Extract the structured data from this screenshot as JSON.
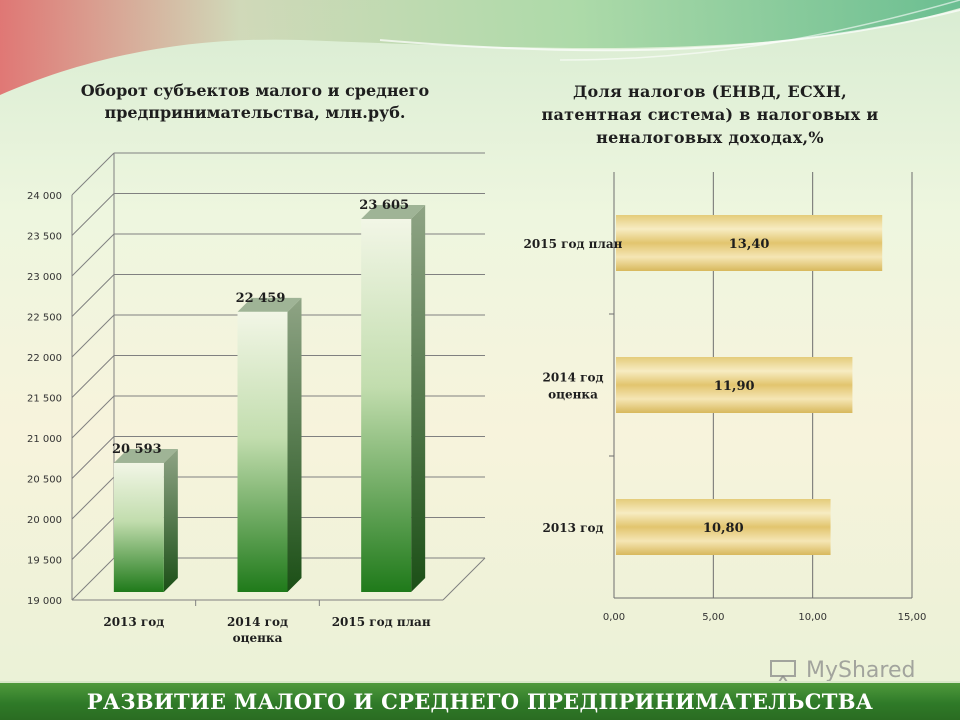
{
  "slide": {
    "footer_text": "РАЗВИТИЕ МАЛОГО И СРЕДНЕГО ПРЕДПРИНИМАТЕЛЬСТВА",
    "watermark_text": "MyShared"
  },
  "colors": {
    "bar_green_dark": "#1f7a1a",
    "bar_green_light": "#f2f6e6",
    "bar_gold": "#e7cf7f",
    "footer_green": "#3a8530"
  },
  "chart_data": [
    {
      "type": "bar",
      "title_lines": [
        "Оборот субъектов малого и среднего",
        "предпринимательства, млн.руб."
      ],
      "categories": [
        [
          "2013 год"
        ],
        [
          "2014 год",
          "оценка"
        ],
        [
          "2015 год план"
        ]
      ],
      "values": [
        20593,
        22459,
        23605
      ],
      "value_labels": [
        "20 593",
        "22 459",
        "23 605"
      ],
      "yticks": [
        "19 000",
        "19 500",
        "20 000",
        "20 500",
        "21 000",
        "21 500",
        "22 000",
        "22 500",
        "23 000",
        "23 500",
        "24 000"
      ],
      "ylim": [
        19000,
        24000
      ],
      "grid": true,
      "legend": "none"
    },
    {
      "type": "bar",
      "orientation": "horizontal",
      "title_lines": [
        "Доля налогов (ЕНВД, ЕСХН,",
        "патентная система) в налоговых и",
        "неналоговых доходах,%"
      ],
      "categories": [
        [
          "2015 год план"
        ],
        [
          "2014 год",
          "оценка"
        ],
        [
          "2013 год"
        ]
      ],
      "values": [
        13.4,
        11.9,
        10.8
      ],
      "value_labels": [
        "13,40",
        "11,90",
        "10,80"
      ],
      "xticks": [
        "0,00",
        "5,00",
        "10,00",
        "15,00"
      ],
      "xlim": [
        0,
        15
      ],
      "grid": true,
      "legend": "none"
    }
  ]
}
